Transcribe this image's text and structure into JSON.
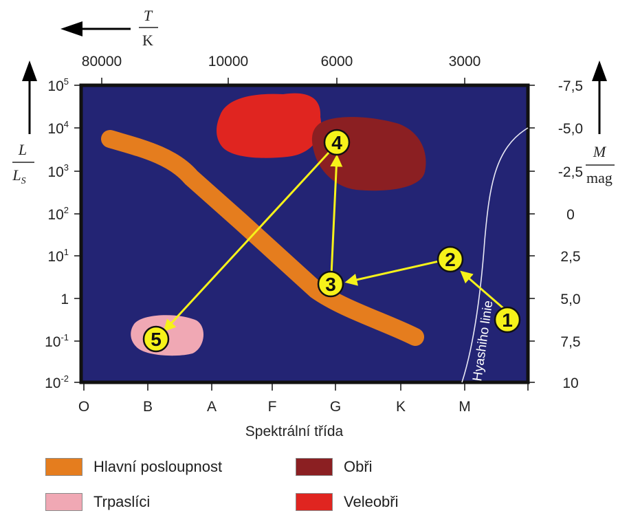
{
  "diagram": {
    "temperature_label": {
      "symbol": "T",
      "unit": "K"
    },
    "luminosity_label": {
      "symbol": "L",
      "unit": "L",
      "unit_subscript": "S"
    },
    "magnitude_label": {
      "symbol": "M",
      "unit": "mag"
    },
    "temperature_ticks": [
      "80000",
      "10000",
      "6000",
      "3000"
    ],
    "luminosity_ticks": [
      {
        "base": "10",
        "exp": "5"
      },
      {
        "base": "10",
        "exp": "4"
      },
      {
        "base": "10",
        "exp": "3"
      },
      {
        "base": "10",
        "exp": "2"
      },
      {
        "base": "10",
        "exp": "1"
      },
      {
        "base": "1",
        "exp": ""
      },
      {
        "base": "10",
        "exp": "-1"
      },
      {
        "base": "10",
        "exp": "-2"
      }
    ],
    "magnitude_ticks": [
      "-7,5",
      "-5,0",
      "-2,5",
      "0",
      "2,5",
      "5,0",
      "7,5",
      "10"
    ],
    "spectral_classes": [
      "O",
      "B",
      "A",
      "F",
      "G",
      "K",
      "M"
    ],
    "x_axis_title": "Spektrální třída",
    "hayashi_label": "Hyashiho linie",
    "stages": [
      "1",
      "2",
      "3",
      "4",
      "5"
    ],
    "colors": {
      "background": "#232474",
      "main_sequence": "#e57d1e",
      "dwarfs": "#f0a8b4",
      "giants": "#8b1f22",
      "supergiants": "#e02520",
      "track": "#f6f21a"
    }
  },
  "legend": [
    {
      "label": "Hlavní posloupnost",
      "color": "#e57d1e"
    },
    {
      "label": "Obři",
      "color": "#8b1f22"
    },
    {
      "label": "Trpaslíci",
      "color": "#f0a8b4"
    },
    {
      "label": "Veleobři",
      "color": "#e02520"
    }
  ]
}
